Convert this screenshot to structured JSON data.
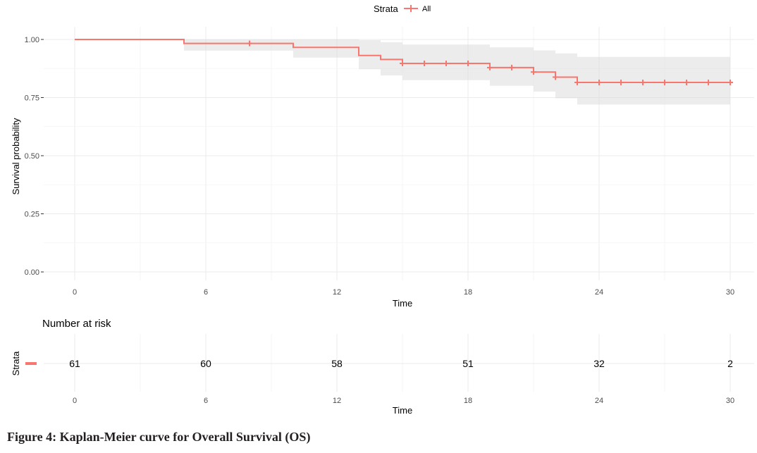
{
  "chart_data": [
    {
      "type": "line",
      "title": "",
      "xlabel": "Time",
      "ylabel": "Survival probability",
      "xlim": [
        0,
        30
      ],
      "ylim": [
        0,
        1
      ],
      "x_ticks": [
        0,
        6,
        12,
        18,
        24,
        30
      ],
      "y_ticks": [
        "0.00",
        "0.25",
        "0.50",
        "0.75",
        "1.00"
      ],
      "y_tick_values": [
        0,
        0.25,
        0.5,
        0.75,
        1.0
      ],
      "grid": true,
      "legend": {
        "title": "Strata",
        "position": "top",
        "entries": [
          "All"
        ]
      },
      "color": "#F8766D",
      "ci_color": "#d9d9d9",
      "series": [
        {
          "name": "All",
          "steps": [
            {
              "x": 0,
              "y": 1.0,
              "lower": 1.0,
              "upper": 1.0
            },
            {
              "x": 5,
              "y": 0.983,
              "lower": 0.952,
              "upper": 1.0
            },
            {
              "x": 10,
              "y": 0.966,
              "lower": 0.922,
              "upper": 1.0
            },
            {
              "x": 13,
              "y": 0.931,
              "lower": 0.872,
              "upper": 0.997
            },
            {
              "x": 14,
              "y": 0.914,
              "lower": 0.845,
              "upper": 0.988
            },
            {
              "x": 15,
              "y": 0.897,
              "lower": 0.825,
              "upper": 0.978
            },
            {
              "x": 19,
              "y": 0.879,
              "lower": 0.801,
              "upper": 0.966
            },
            {
              "x": 21,
              "y": 0.86,
              "lower": 0.776,
              "upper": 0.953
            },
            {
              "x": 22,
              "y": 0.838,
              "lower": 0.747,
              "upper": 0.94
            },
            {
              "x": 23,
              "y": 0.815,
              "lower": 0.72,
              "upper": 0.925
            },
            {
              "x": 30,
              "y": 0.815,
              "lower": 0.72,
              "upper": 0.925
            }
          ],
          "censor_times": [
            8,
            15,
            16,
            17,
            18,
            19,
            20,
            21,
            22,
            23,
            24,
            25,
            26,
            27,
            28,
            29,
            30
          ]
        }
      ]
    },
    {
      "type": "table",
      "title": "Number at risk",
      "xlabel": "Time",
      "ylabel": "Strata",
      "x_ticks": [
        0,
        6,
        12,
        18,
        24,
        30
      ],
      "times": [
        0,
        6,
        12,
        18,
        24,
        30
      ],
      "counts": [
        61,
        60,
        58,
        51,
        32,
        2
      ]
    }
  ],
  "caption": "Figure 4: Kaplan-Meier curve for Overall Survival (OS)"
}
